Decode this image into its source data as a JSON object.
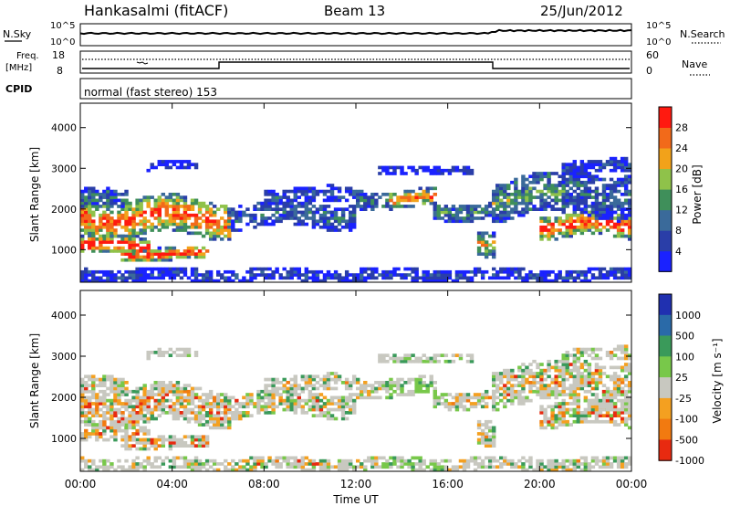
{
  "header": {
    "station": "Hankasalmi (fitACF)",
    "beam": "Beam 13",
    "date": "25/Jun/2012"
  },
  "noise_panel": {
    "left_label": "N.Sky",
    "right_label": "N.Search",
    "left_ticks": [
      "10^5",
      "10^0"
    ],
    "right_ticks": [
      "10^5",
      "10^0"
    ]
  },
  "freq_panel": {
    "left_label_line1": "Freq.",
    "left_label_line2": "[MHz]",
    "left_ticks": [
      "18",
      "8"
    ],
    "right_ticks": [
      "60",
      "0"
    ],
    "right_label": "Nave"
  },
  "cpid_panel": {
    "label": "CPID",
    "text": "normal (fast stereo) 153"
  },
  "colors": {
    "power": [
      "#1a22ff",
      "#2a3ea8",
      "#3a6a9a",
      "#3f8f5a",
      "#8fc24a",
      "#f2a21a",
      "#f26a1a",
      "#ff1a10"
    ],
    "velocity": [
      "#2030b0",
      "#2a6aa8",
      "#3a9a5a",
      "#78c84a",
      "#c8c8c0",
      "#f4a020",
      "#f27a10",
      "#e82a10"
    ]
  },
  "chart_data": [
    {
      "type": "heatmap",
      "title": "",
      "ylabel": "Slant Range [km]",
      "xlabel": "",
      "x_ticks": [
        "00:00",
        "04:00",
        "08:00",
        "12:00",
        "16:00",
        "20:00",
        "00:00"
      ],
      "y_ticks": [
        1000,
        2000,
        3000,
        4000
      ],
      "ylim": [
        200,
        4600
      ],
      "xlim_hours": [
        0,
        24
      ],
      "colorbar": {
        "label": "Power [dB]",
        "ticks": [
          "4",
          "8",
          "12",
          "16",
          "20",
          "24",
          "28"
        ],
        "range": [
          0,
          32
        ]
      }
    },
    {
      "type": "heatmap",
      "title": "",
      "ylabel": "Slant Range [km]",
      "xlabel": "Time UT",
      "x_ticks": [
        "00:00",
        "04:00",
        "08:00",
        "12:00",
        "16:00",
        "20:00",
        "00:00"
      ],
      "y_ticks": [
        1000,
        2000,
        3000,
        4000
      ],
      "ylim": [
        200,
        4600
      ],
      "xlim_hours": [
        0,
        24
      ],
      "colorbar": {
        "label": "Velocity [m s⁻¹]",
        "ticks": [
          "1000",
          "500",
          "100",
          "25",
          "-25",
          "-100",
          "-500",
          "-1000"
        ]
      }
    }
  ]
}
